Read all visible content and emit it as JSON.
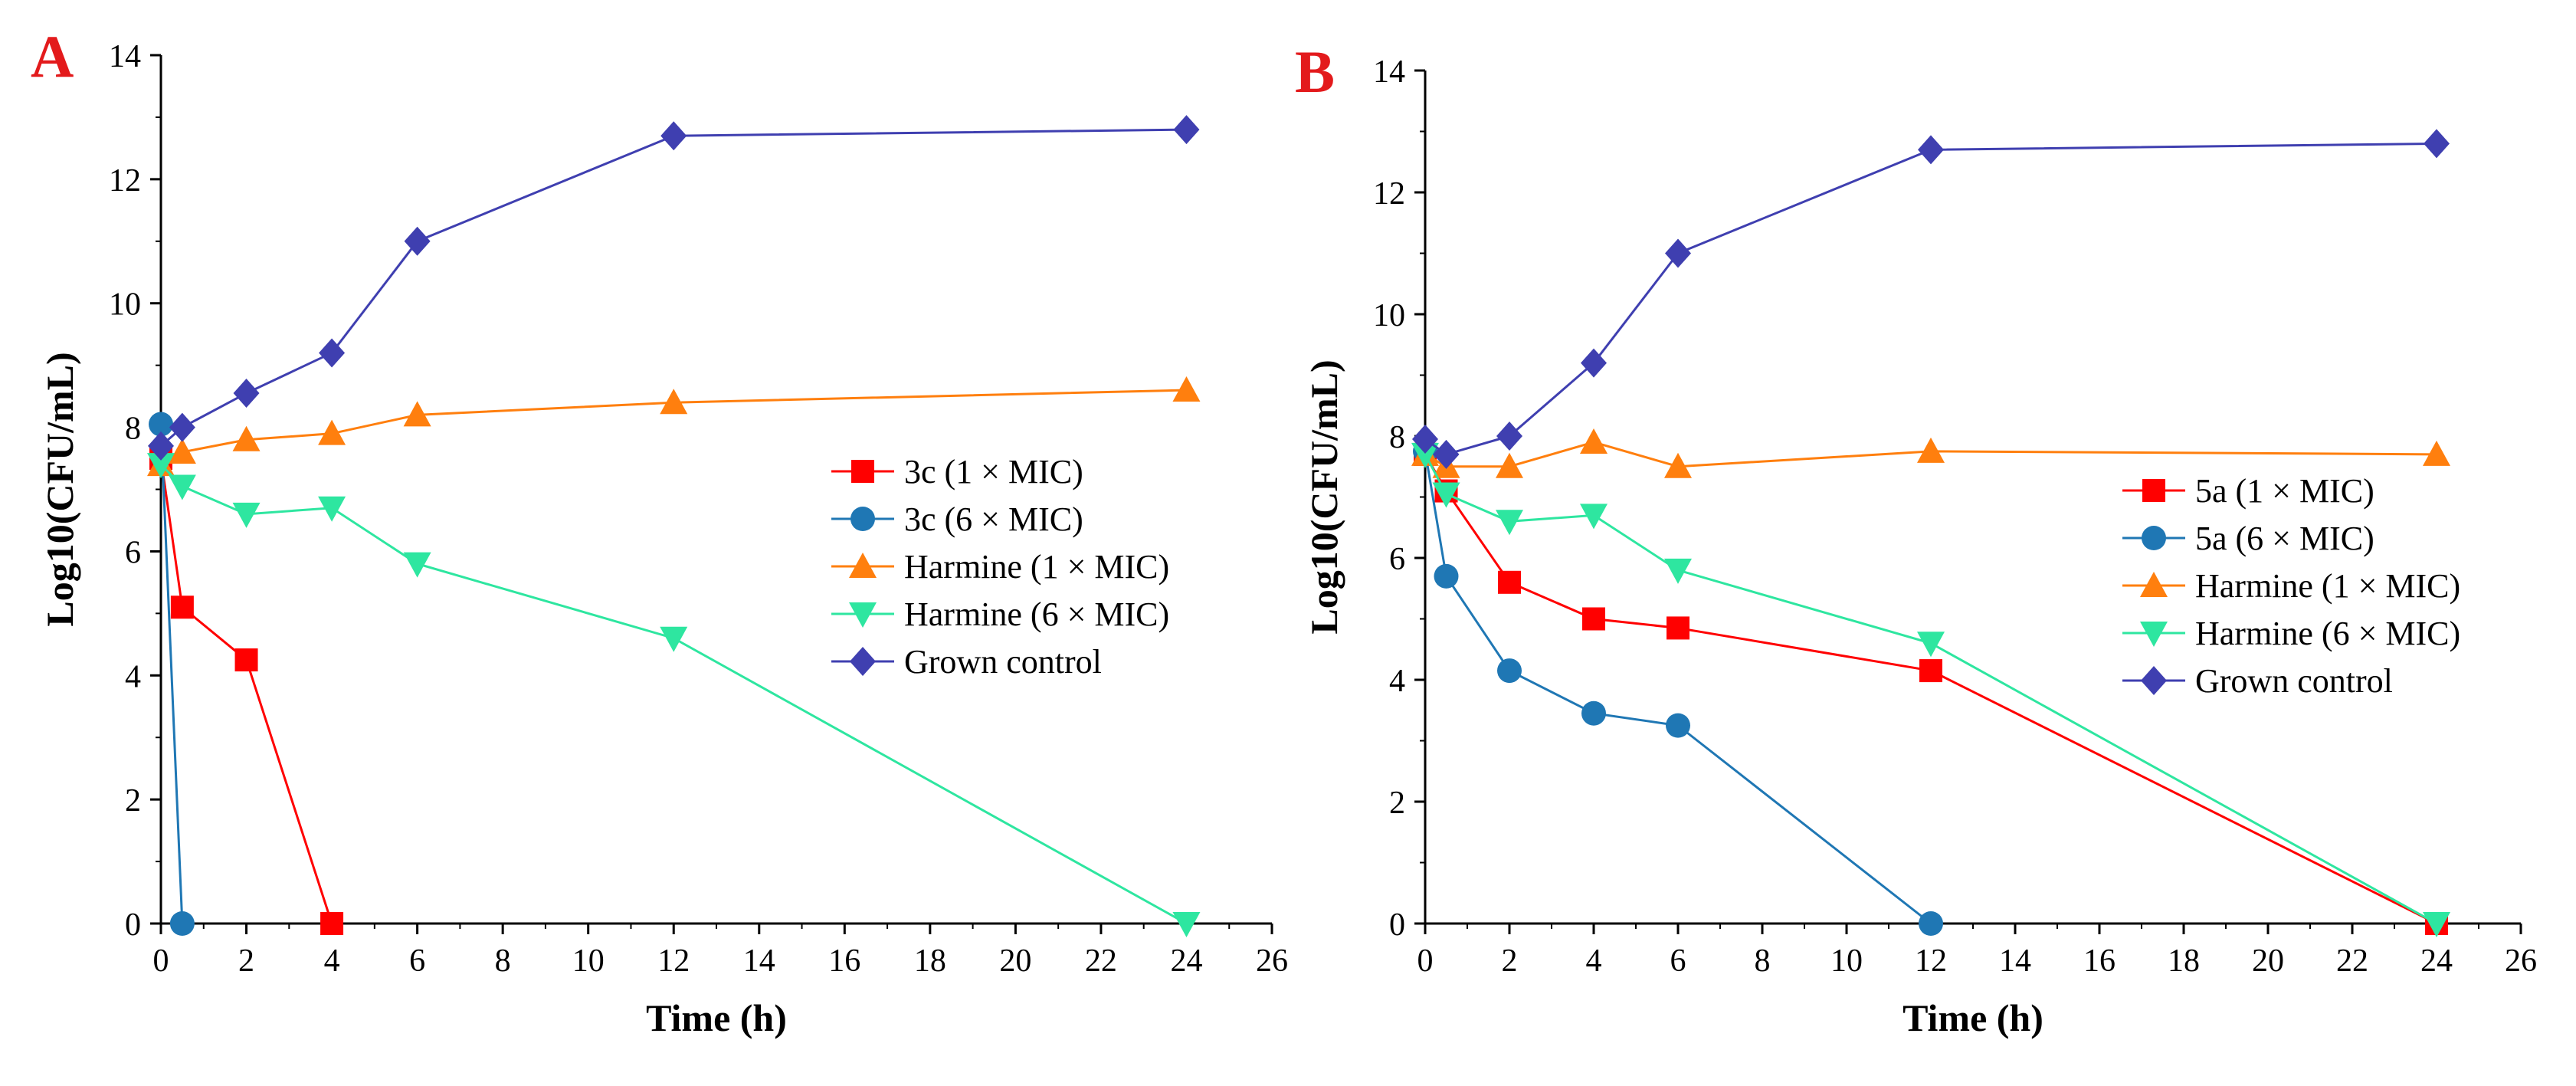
{
  "chart_data": [
    {
      "panel_label": "A",
      "type": "line",
      "xlabel": "Time (h)",
      "ylabel": "Log10(CFU/mL)",
      "xlim": [
        0,
        26
      ],
      "ylim": [
        0,
        14
      ],
      "xticks": [
        "0",
        "2",
        "4",
        "6",
        "8",
        "10",
        "12",
        "14",
        "16",
        "18",
        "20",
        "22",
        "24",
        "26"
      ],
      "yticks": [
        "0",
        "2",
        "4",
        "6",
        "8",
        "10",
        "12",
        "14"
      ],
      "series": [
        {
          "name": "3c (1 × MIC)",
          "color": "#ff0000",
          "marker": "square",
          "x": [
            0,
            0.5,
            2,
            4
          ],
          "y": [
            7.5,
            5.1,
            4.25,
            0
          ]
        },
        {
          "name": "3c (6 × MIC)",
          "color": "#1f77b4",
          "marker": "circle",
          "x": [
            0,
            0.5
          ],
          "y": [
            8.05,
            0
          ]
        },
        {
          "name": "Harmine (1 × MIC)",
          "color": "#ff7f0e",
          "marker": "triangle-up",
          "x": [
            0,
            0.5,
            2,
            4,
            6,
            12,
            24
          ],
          "y": [
            7.4,
            7.6,
            7.8,
            7.9,
            8.2,
            8.4,
            8.6
          ]
        },
        {
          "name": "Harmine (6 × MIC)",
          "color": "#2ee6a0",
          "marker": "triangle-down",
          "x": [
            0,
            0.5,
            2,
            4,
            6,
            12,
            24
          ],
          "y": [
            7.4,
            7.05,
            6.6,
            6.7,
            5.8,
            4.6,
            0
          ]
        },
        {
          "name": "Grown control",
          "color": "#3f3fb0",
          "marker": "diamond",
          "x": [
            0,
            0.5,
            2,
            4,
            6,
            12,
            24
          ],
          "y": [
            7.7,
            8.0,
            8.55,
            9.2,
            11.0,
            12.7,
            12.8
          ]
        }
      ],
      "legend_position": "center-right"
    },
    {
      "panel_label": "B",
      "type": "line",
      "xlabel": "Time (h)",
      "ylabel": "Log10(CFU/mL)",
      "xlim": [
        0,
        26
      ],
      "ylim": [
        0,
        14
      ],
      "xticks": [
        "0",
        "2",
        "4",
        "6",
        "8",
        "10",
        "12",
        "14",
        "16",
        "18",
        "20",
        "22",
        "24",
        "26"
      ],
      "yticks": [
        "0",
        "2",
        "4",
        "6",
        "8",
        "10",
        "12",
        "14"
      ],
      "series": [
        {
          "name": "5a (1 × MIC)",
          "color": "#ff0000",
          "marker": "square",
          "x": [
            0,
            0.5,
            2,
            4,
            6,
            12,
            24
          ],
          "y": [
            7.7,
            7.1,
            5.6,
            5.0,
            4.85,
            4.15,
            0
          ]
        },
        {
          "name": "5a (6 × MIC)",
          "color": "#1f77b4",
          "marker": "circle",
          "x": [
            0,
            0.5,
            2,
            4,
            6,
            12
          ],
          "y": [
            7.75,
            5.7,
            4.15,
            3.45,
            3.25,
            0
          ]
        },
        {
          "name": "Harmine (1 × MIC)",
          "color": "#ff7f0e",
          "marker": "triangle-up",
          "x": [
            0,
            0.5,
            2,
            4,
            6,
            12,
            24
          ],
          "y": [
            7.7,
            7.5,
            7.5,
            7.9,
            7.5,
            7.75,
            7.7
          ]
        },
        {
          "name": "Harmine (6 × MIC)",
          "color": "#2ee6a0",
          "marker": "triangle-down",
          "x": [
            0,
            0.5,
            2,
            4,
            6,
            12,
            24
          ],
          "y": [
            7.7,
            7.05,
            6.6,
            6.7,
            5.8,
            4.6,
            0
          ]
        },
        {
          "name": "Grown control",
          "color": "#3f3fb0",
          "marker": "diamond",
          "x": [
            0,
            0.5,
            2,
            4,
            6,
            12,
            24
          ],
          "y": [
            7.95,
            7.7,
            8.0,
            9.2,
            11.0,
            12.7,
            12.8
          ]
        }
      ],
      "legend_position": "center-right"
    }
  ]
}
